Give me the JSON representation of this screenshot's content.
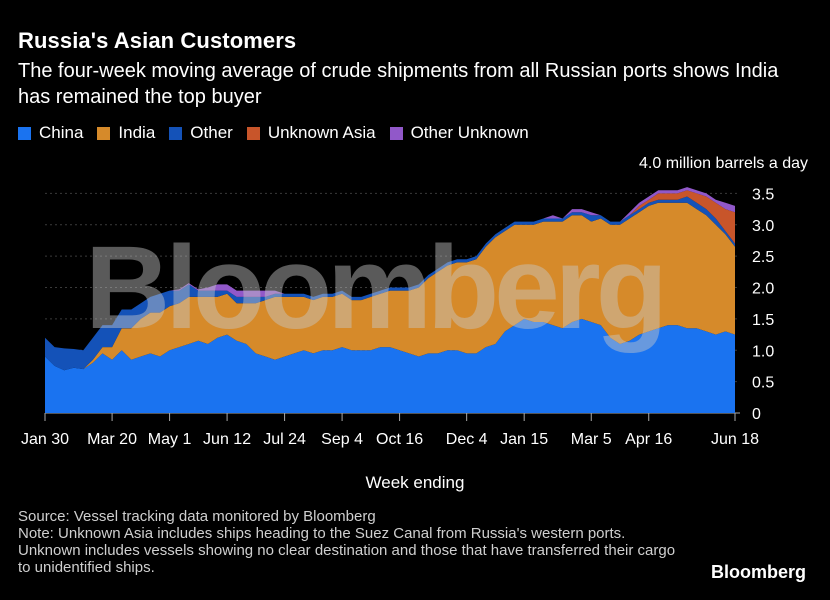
{
  "header": {
    "title": "Russia's Asian Customers",
    "subtitle": "The four-week moving average of crude shipments from all Russian ports shows India has remained the top buyer"
  },
  "legend": [
    {
      "label": "China",
      "color": "#1a73f0"
    },
    {
      "label": "India",
      "color": "#d68a2a"
    },
    {
      "label": "Other",
      "color": "#1452b8"
    },
    {
      "label": "Unknown Asia",
      "color": "#c8552a"
    },
    {
      "label": "Other Unknown",
      "color": "#9158c9"
    }
  ],
  "chart_data": {
    "type": "area",
    "stacked": true,
    "xlabel": "Week ending",
    "ylabel": "",
    "y_unit_label": "4.0 million barrels a day",
    "ylim": [
      0,
      4.0
    ],
    "y_ticks": [
      "0",
      "0.5",
      "1.0",
      "1.5",
      "2.0",
      "2.5",
      "3.0",
      "3.5"
    ],
    "x_ticks": [
      "Jan 30",
      "Mar 20",
      "May 1",
      "Jun 12",
      "Jul 24",
      "Sep 4",
      "Oct 16",
      "Dec 4",
      "Jan 15",
      "Mar 5",
      "Apr 16",
      "Jun 18"
    ],
    "x": [
      "Jan 30",
      "Feb 6",
      "Feb 13",
      "Feb 20",
      "Feb 27",
      "Mar 6",
      "Mar 13",
      "Mar 20",
      "Mar 27",
      "Apr 3",
      "Apr 10",
      "Apr 17",
      "Apr 24",
      "May 1",
      "May 8",
      "May 15",
      "May 22",
      "May 29",
      "Jun 5",
      "Jun 12",
      "Jun 19",
      "Jun 26",
      "Jul 3",
      "Jul 10",
      "Jul 17",
      "Jul 24",
      "Jul 31",
      "Aug 7",
      "Aug 14",
      "Aug 21",
      "Aug 28",
      "Sep 4",
      "Sep 11",
      "Sep 18",
      "Sep 25",
      "Oct 2",
      "Oct 9",
      "Oct 16",
      "Oct 23",
      "Oct 30",
      "Nov 6",
      "Nov 13",
      "Nov 20",
      "Nov 27",
      "Dec 4",
      "Dec 11",
      "Dec 18",
      "Dec 25",
      "Jan 1",
      "Jan 8",
      "Jan 15",
      "Jan 22",
      "Jan 29",
      "Feb 5",
      "Feb 12",
      "Feb 19",
      "Feb 26",
      "Mar 5",
      "Mar 12",
      "Mar 19",
      "Mar 26",
      "Apr 2",
      "Apr 9",
      "Apr 16",
      "Apr 23",
      "Apr 30",
      "May 7",
      "May 14",
      "May 21",
      "May 28",
      "Jun 4",
      "Jun 11",
      "Jun 18"
    ],
    "series": [
      {
        "name": "China",
        "values": [
          0.9,
          0.75,
          0.68,
          0.72,
          0.7,
          0.8,
          0.95,
          0.85,
          1.0,
          0.85,
          0.9,
          0.95,
          0.9,
          1.0,
          1.05,
          1.1,
          1.15,
          1.1,
          1.2,
          1.25,
          1.15,
          1.1,
          0.95,
          0.9,
          0.85,
          0.9,
          0.95,
          1.0,
          0.95,
          1.0,
          1.0,
          1.05,
          1.0,
          1.0,
          1.0,
          1.05,
          1.05,
          1.0,
          0.95,
          0.9,
          0.95,
          0.95,
          1.0,
          1.0,
          0.95,
          0.95,
          1.05,
          1.1,
          1.3,
          1.4,
          1.5,
          1.45,
          1.45,
          1.4,
          1.35,
          1.45,
          1.5,
          1.45,
          1.4,
          1.2,
          1.1,
          1.15,
          1.25,
          1.3,
          1.35,
          1.4,
          1.4,
          1.35,
          1.35,
          1.3,
          1.25,
          1.3,
          1.25
        ]
      },
      {
        "name": "India",
        "values": [
          0.0,
          0.0,
          0.0,
          0.0,
          0.0,
          0.05,
          0.1,
          0.2,
          0.35,
          0.5,
          0.6,
          0.65,
          0.7,
          0.7,
          0.7,
          0.75,
          0.7,
          0.75,
          0.65,
          0.65,
          0.6,
          0.65,
          0.8,
          0.9,
          1.0,
          0.95,
          0.9,
          0.85,
          0.85,
          0.85,
          0.85,
          0.85,
          0.8,
          0.8,
          0.85,
          0.85,
          0.9,
          0.95,
          1.0,
          1.1,
          1.2,
          1.3,
          1.35,
          1.4,
          1.45,
          1.5,
          1.6,
          1.7,
          1.6,
          1.6,
          1.5,
          1.55,
          1.6,
          1.65,
          1.7,
          1.7,
          1.65,
          1.6,
          1.7,
          1.8,
          1.9,
          1.95,
          1.95,
          2.0,
          2.0,
          1.95,
          1.95,
          2.0,
          1.9,
          1.85,
          1.75,
          1.55,
          1.4
        ]
      },
      {
        "name": "Other",
        "values": [
          0.3,
          0.3,
          0.35,
          0.3,
          0.3,
          0.35,
          0.35,
          0.35,
          0.3,
          0.3,
          0.25,
          0.25,
          0.3,
          0.25,
          0.2,
          0.2,
          0.1,
          0.1,
          0.1,
          0.05,
          0.1,
          0.1,
          0.1,
          0.05,
          0.05,
          0.05,
          0.05,
          0.05,
          0.05,
          0.05,
          0.05,
          0.05,
          0.05,
          0.05,
          0.05,
          0.05,
          0.05,
          0.05,
          0.05,
          0.05,
          0.05,
          0.05,
          0.05,
          0.05,
          0.05,
          0.05,
          0.05,
          0.05,
          0.05,
          0.05,
          0.05,
          0.05,
          0.05,
          0.05,
          0.05,
          0.05,
          0.05,
          0.1,
          0.05,
          0.05,
          0.05,
          0.05,
          0.05,
          0.05,
          0.05,
          0.05,
          0.05,
          0.1,
          0.1,
          0.1,
          0.1,
          0.05,
          0.05
        ]
      },
      {
        "name": "Unknown Asia",
        "values": [
          0,
          0,
          0,
          0,
          0,
          0,
          0,
          0,
          0,
          0,
          0,
          0,
          0,
          0,
          0,
          0,
          0,
          0,
          0,
          0,
          0,
          0,
          0,
          0,
          0,
          0,
          0,
          0,
          0,
          0,
          0,
          0,
          0,
          0,
          0,
          0,
          0,
          0,
          0,
          0,
          0,
          0,
          0,
          0,
          0,
          0,
          0,
          0,
          0,
          0,
          0,
          0,
          0,
          0,
          0,
          0,
          0,
          0,
          0,
          0,
          0,
          0,
          0.05,
          0.05,
          0.1,
          0.1,
          0.1,
          0.1,
          0.15,
          0.2,
          0.25,
          0.35,
          0.5
        ]
      },
      {
        "name": "Other Unknown",
        "values": [
          0,
          0,
          0,
          0,
          0,
          0,
          0,
          0,
          0,
          0,
          0,
          0,
          0,
          0,
          0.02,
          0.02,
          0.02,
          0.05,
          0.1,
          0.1,
          0.1,
          0.1,
          0.1,
          0.1,
          0.05,
          0,
          0,
          0,
          0,
          0,
          0,
          0,
          0,
          0,
          0,
          0,
          0,
          0,
          0,
          0,
          0,
          0,
          0,
          0,
          0,
          0,
          0,
          0,
          0,
          0,
          0,
          0,
          0,
          0.05,
          0,
          0.05,
          0.05,
          0.05,
          0,
          0,
          0,
          0.05,
          0.05,
          0.05,
          0.05,
          0.05,
          0.05,
          0.05,
          0.05,
          0.05,
          0.05,
          0.1,
          0.1
        ]
      }
    ],
    "grid": true,
    "legend_position": "top-left"
  },
  "axis": {
    "x_title": "Week ending"
  },
  "footer": {
    "source": "Source: Vessel tracking data monitored by Bloomberg",
    "note": "Note: Unknown Asia includes ships heading to the Suez Canal from Russia's western ports. Unknown includes vessels showing no clear destination and those that have transferred their cargo to unidentified ships."
  },
  "brand": "Bloomberg",
  "watermark": "Bloomberg"
}
